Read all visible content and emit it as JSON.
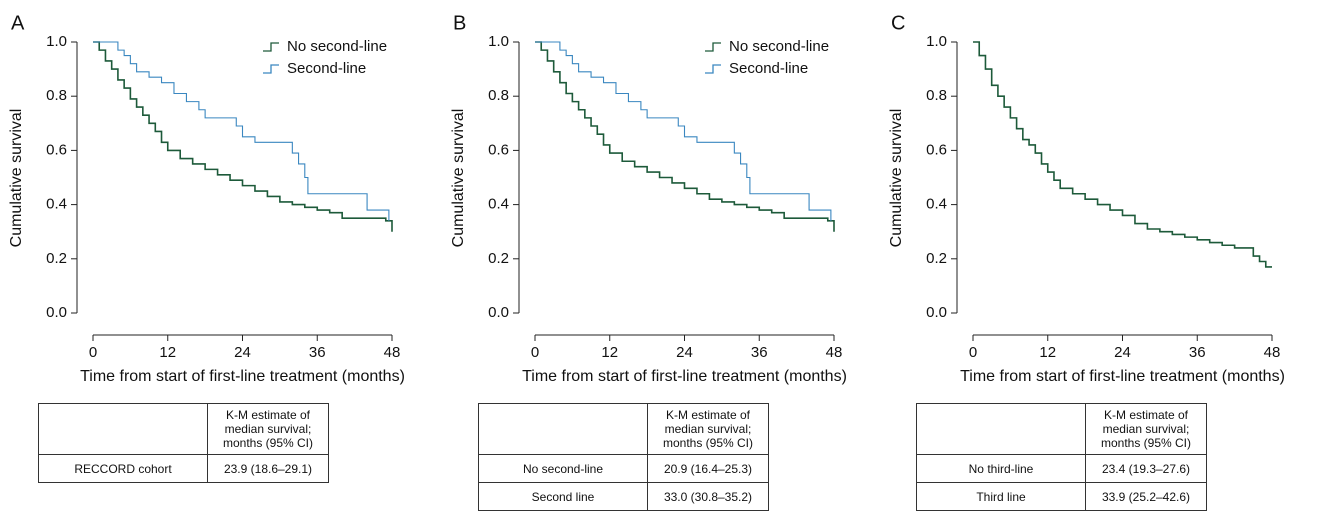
{
  "chart_data": [
    {
      "type": "line",
      "panel": "A",
      "drawstyle": "steps-post",
      "xlabel": "Time from start of first-line treatment (months)",
      "ylabel": "Cumulative survival",
      "legend": "upper right",
      "xlim": [
        0,
        48
      ],
      "ylim": [
        0,
        1
      ],
      "xticks": [
        0,
        12,
        24,
        36,
        48
      ],
      "yticks": [
        {
          "value": 0,
          "label": "0.0"
        },
        {
          "value": 0.2,
          "label": "0.2"
        },
        {
          "value": 0.4,
          "label": "0.4"
        },
        {
          "value": 0.6,
          "label": "0.6"
        },
        {
          "value": 0.8,
          "label": "0.8"
        },
        {
          "value": 1,
          "label": "1.0"
        }
      ],
      "series": [
        {
          "name": "No second-line",
          "color": "#1d5a3a",
          "x": [
            0,
            1,
            2,
            3,
            4,
            5,
            6,
            7,
            8,
            9,
            10,
            11,
            12,
            14,
            16,
            18,
            20,
            22,
            24,
            26,
            28,
            30,
            32,
            34,
            36,
            38,
            40,
            44,
            47,
            48
          ],
          "values": [
            1,
            0.97,
            0.93,
            0.9,
            0.86,
            0.83,
            0.79,
            0.76,
            0.73,
            0.7,
            0.67,
            0.63,
            0.6,
            0.57,
            0.55,
            0.53,
            0.51,
            0.49,
            0.47,
            0.45,
            0.43,
            0.41,
            0.4,
            0.39,
            0.38,
            0.37,
            0.35,
            0.35,
            0.34,
            0.3
          ]
        },
        {
          "name": "Second-line",
          "color": "#3a87c0",
          "x": [
            0,
            4,
            5,
            6,
            7,
            9,
            11,
            13,
            15,
            17,
            18,
            23,
            24,
            26,
            31,
            32,
            33,
            34,
            34.5,
            44,
            47.5
          ],
          "values": [
            1,
            0.97,
            0.95,
            0.92,
            0.89,
            0.87,
            0.85,
            0.81,
            0.78,
            0.75,
            0.72,
            0.69,
            0.65,
            0.63,
            0.63,
            0.59,
            0.55,
            0.5,
            0.44,
            0.38,
            0.34
          ]
        }
      ]
    },
    {
      "type": "line",
      "panel": "B",
      "drawstyle": "steps-post",
      "xlabel": "Time from start of first-line treatment (months)",
      "ylabel": "Cumulative survival",
      "legend": "upper right",
      "xlim": [
        0,
        48
      ],
      "ylim": [
        0,
        1
      ],
      "xticks": [
        0,
        12,
        24,
        36,
        48
      ],
      "yticks": [
        {
          "value": 0,
          "label": "0.0"
        },
        {
          "value": 0.2,
          "label": "0.2"
        },
        {
          "value": 0.4,
          "label": "0.4"
        },
        {
          "value": 0.6,
          "label": "0.6"
        },
        {
          "value": 0.8,
          "label": "0.8"
        },
        {
          "value": 1,
          "label": "1.0"
        }
      ],
      "series": [
        {
          "name": "No second-line",
          "color": "#1d5a3a",
          "x": [
            0,
            1,
            2,
            3,
            4,
            5,
            6,
            7,
            8,
            9,
            10,
            11,
            12,
            14,
            16,
            18,
            20,
            22,
            24,
            26,
            28,
            30,
            32,
            34,
            36,
            38,
            40,
            44,
            47,
            48
          ],
          "values": [
            1,
            0.97,
            0.93,
            0.89,
            0.85,
            0.81,
            0.78,
            0.75,
            0.72,
            0.69,
            0.66,
            0.62,
            0.59,
            0.56,
            0.54,
            0.52,
            0.5,
            0.48,
            0.46,
            0.44,
            0.42,
            0.41,
            0.4,
            0.39,
            0.38,
            0.37,
            0.35,
            0.35,
            0.34,
            0.3
          ]
        },
        {
          "name": "Second-line",
          "color": "#3a87c0",
          "x": [
            0,
            4,
            5,
            6,
            7,
            9,
            11,
            13,
            15,
            17,
            18,
            23,
            24,
            26,
            31,
            32,
            33,
            34,
            34.5,
            44,
            47.5
          ],
          "values": [
            1,
            0.97,
            0.95,
            0.92,
            0.89,
            0.87,
            0.85,
            0.81,
            0.78,
            0.75,
            0.72,
            0.69,
            0.65,
            0.63,
            0.63,
            0.59,
            0.55,
            0.5,
            0.44,
            0.38,
            0.34
          ]
        }
      ]
    },
    {
      "type": "line",
      "panel": "C",
      "drawstyle": "steps-post",
      "xlabel": "Time from start of first-line treatment (months)",
      "ylabel": "Cumulative survival",
      "xlim": [
        0,
        48
      ],
      "ylim": [
        0,
        1
      ],
      "xticks": [
        0,
        12,
        24,
        36,
        48
      ],
      "yticks": [
        {
          "value": 0,
          "label": "0.0"
        },
        {
          "value": 0.2,
          "label": "0.2"
        },
        {
          "value": 0.4,
          "label": "0.4"
        },
        {
          "value": 0.6,
          "label": "0.6"
        },
        {
          "value": 0.8,
          "label": "0.8"
        },
        {
          "value": 1,
          "label": "1.0"
        }
      ],
      "series": [
        {
          "color": "#1d5a3a",
          "x": [
            0,
            1,
            2,
            3,
            4,
            5,
            6,
            7,
            8,
            9,
            10,
            11,
            12,
            13,
            14,
            16,
            18,
            20,
            22,
            24,
            26,
            28,
            30,
            32,
            34,
            36,
            38,
            40,
            42,
            45,
            46,
            47,
            48
          ],
          "values": [
            1,
            0.95,
            0.9,
            0.84,
            0.8,
            0.76,
            0.72,
            0.68,
            0.64,
            0.62,
            0.59,
            0.55,
            0.52,
            0.49,
            0.46,
            0.44,
            0.42,
            0.4,
            0.38,
            0.36,
            0.33,
            0.31,
            0.3,
            0.29,
            0.28,
            0.27,
            0.26,
            0.25,
            0.24,
            0.21,
            0.19,
            0.17,
            0.17
          ]
        }
      ]
    }
  ],
  "tables": [
    {
      "header": "K-M estimate of median survival; months (95% CI)",
      "rows": [
        [
          "RECCORD cohort",
          "23.9 (18.6–29.1)"
        ]
      ]
    },
    {
      "header": "K-M estimate of median survival; months (95% CI)",
      "rows": [
        [
          "No second-line",
          "20.9 (16.4–25.3)"
        ],
        [
          "Second line",
          "33.0 (30.8–35.2)"
        ]
      ]
    },
    {
      "header": "K-M estimate of median survival; months (95% CI)",
      "rows": [
        [
          "No third-line",
          "23.4 (19.3–27.6)"
        ],
        [
          "Third line",
          "33.9 (25.2–42.6)"
        ]
      ]
    }
  ]
}
